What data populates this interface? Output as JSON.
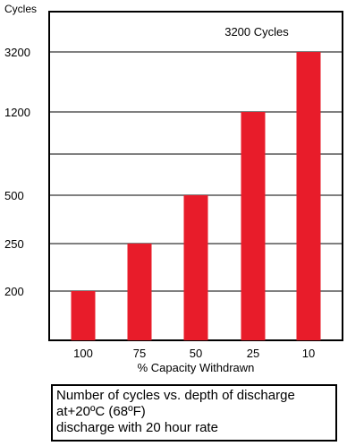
{
  "chart_data": {
    "type": "bar",
    "ylabel": "Cycles",
    "xlabel": "% Capacity Withdrawn",
    "annotation": "3200 Cycles",
    "categories": [
      "100",
      "75",
      "50",
      "25",
      "10"
    ],
    "values": [
      200,
      250,
      500,
      1200,
      3200
    ],
    "y_ticks": [
      "3200",
      "1200",
      "500",
      "250",
      "200"
    ],
    "y_scale": "non-linear (ticks at 200, 250, 500, 1200, 3200)",
    "grid": true,
    "bar_color": "#e81c2a"
  },
  "caption": {
    "lines": [
      "Number of cycles vs. depth of discharge",
      "at+20ºC (68ºF)",
      "discharge with 20 hour rate"
    ]
  }
}
